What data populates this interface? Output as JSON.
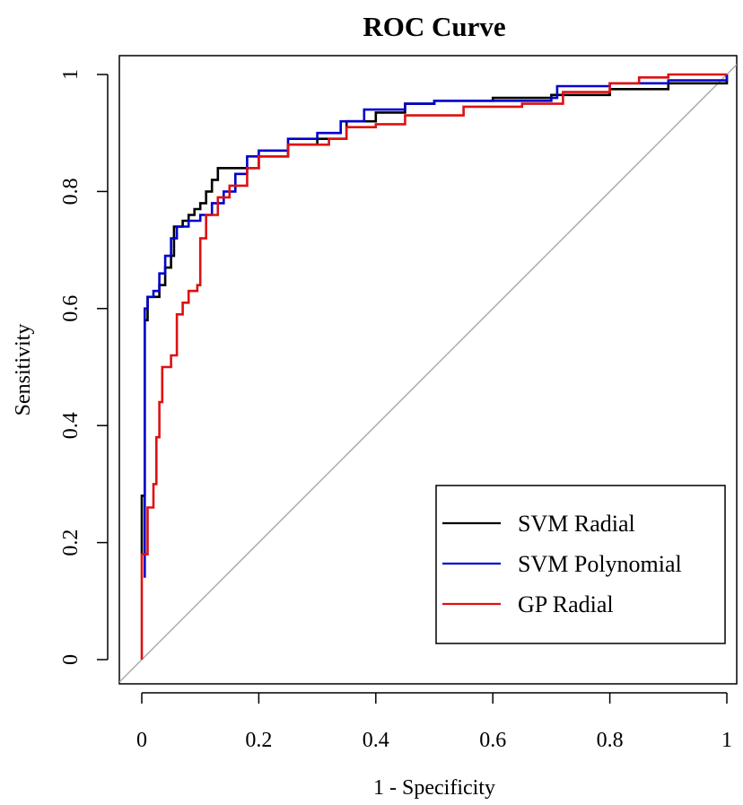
{
  "chart_data": {
    "type": "line",
    "title": "ROC Curve",
    "xlabel": "1 - Specificity",
    "ylabel": "Sensitivity",
    "xlim": [
      0,
      1
    ],
    "ylim": [
      0,
      1
    ],
    "x_ticks": [
      "0",
      "0.2",
      "0.4",
      "0.6",
      "0.8",
      "1"
    ],
    "y_ticks": [
      "0",
      "0.2",
      "0.4",
      "0.6",
      "0.8",
      "1"
    ],
    "grid": false,
    "legend_position": "bottom-right",
    "diagonal_reference_line": true,
    "diagonal_color": "#aaaaaa",
    "series": [
      {
        "name": "SVM Radial",
        "color": "#000000",
        "points": [
          [
            0,
            0.18
          ],
          [
            0,
            0.28
          ],
          [
            0.005,
            0.28
          ],
          [
            0.005,
            0.58
          ],
          [
            0.01,
            0.62
          ],
          [
            0.02,
            0.62
          ],
          [
            0.03,
            0.64
          ],
          [
            0.04,
            0.67
          ],
          [
            0.05,
            0.69
          ],
          [
            0.055,
            0.74
          ],
          [
            0.065,
            0.74
          ],
          [
            0.07,
            0.75
          ],
          [
            0.08,
            0.76
          ],
          [
            0.09,
            0.77
          ],
          [
            0.1,
            0.78
          ],
          [
            0.11,
            0.8
          ],
          [
            0.12,
            0.82
          ],
          [
            0.13,
            0.84
          ],
          [
            0.15,
            0.84
          ],
          [
            0.17,
            0.84
          ],
          [
            0.2,
            0.86
          ],
          [
            0.25,
            0.88
          ],
          [
            0.3,
            0.89
          ],
          [
            0.35,
            0.92
          ],
          [
            0.4,
            0.935
          ],
          [
            0.45,
            0.95
          ],
          [
            0.5,
            0.955
          ],
          [
            0.6,
            0.96
          ],
          [
            0.7,
            0.965
          ],
          [
            0.8,
            0.975
          ],
          [
            0.9,
            0.985
          ],
          [
            1.0,
            1.0
          ]
        ]
      },
      {
        "name": "SVM Polynomial",
        "color": "#0000cc",
        "points": [
          [
            0.005,
            0.14
          ],
          [
            0.005,
            0.6
          ],
          [
            0.01,
            0.62
          ],
          [
            0.02,
            0.63
          ],
          [
            0.03,
            0.66
          ],
          [
            0.04,
            0.69
          ],
          [
            0.05,
            0.72
          ],
          [
            0.06,
            0.74
          ],
          [
            0.08,
            0.75
          ],
          [
            0.1,
            0.76
          ],
          [
            0.12,
            0.78
          ],
          [
            0.14,
            0.8
          ],
          [
            0.16,
            0.83
          ],
          [
            0.18,
            0.86
          ],
          [
            0.2,
            0.87
          ],
          [
            0.25,
            0.89
          ],
          [
            0.3,
            0.9
          ],
          [
            0.34,
            0.92
          ],
          [
            0.38,
            0.94
          ],
          [
            0.45,
            0.95
          ],
          [
            0.5,
            0.955
          ],
          [
            0.6,
            0.955
          ],
          [
            0.7,
            0.96
          ],
          [
            0.71,
            0.98
          ],
          [
            0.8,
            0.985
          ],
          [
            0.9,
            0.99
          ],
          [
            1.0,
            1.0
          ]
        ]
      },
      {
        "name": "GP Radial",
        "color": "#dd1111",
        "points": [
          [
            0,
            0
          ],
          [
            0,
            0.18
          ],
          [
            0.005,
            0.18
          ],
          [
            0.01,
            0.26
          ],
          [
            0.02,
            0.3
          ],
          [
            0.025,
            0.38
          ],
          [
            0.03,
            0.44
          ],
          [
            0.035,
            0.5
          ],
          [
            0.05,
            0.52
          ],
          [
            0.06,
            0.59
          ],
          [
            0.07,
            0.61
          ],
          [
            0.08,
            0.63
          ],
          [
            0.095,
            0.64
          ],
          [
            0.1,
            0.72
          ],
          [
            0.11,
            0.76
          ],
          [
            0.13,
            0.79
          ],
          [
            0.15,
            0.81
          ],
          [
            0.18,
            0.84
          ],
          [
            0.2,
            0.86
          ],
          [
            0.25,
            0.88
          ],
          [
            0.32,
            0.89
          ],
          [
            0.35,
            0.91
          ],
          [
            0.4,
            0.915
          ],
          [
            0.45,
            0.93
          ],
          [
            0.55,
            0.945
          ],
          [
            0.65,
            0.95
          ],
          [
            0.72,
            0.97
          ],
          [
            0.8,
            0.985
          ],
          [
            0.85,
            0.995
          ],
          [
            0.9,
            1.0
          ],
          [
            1.0,
            1.0
          ]
        ]
      }
    ]
  }
}
